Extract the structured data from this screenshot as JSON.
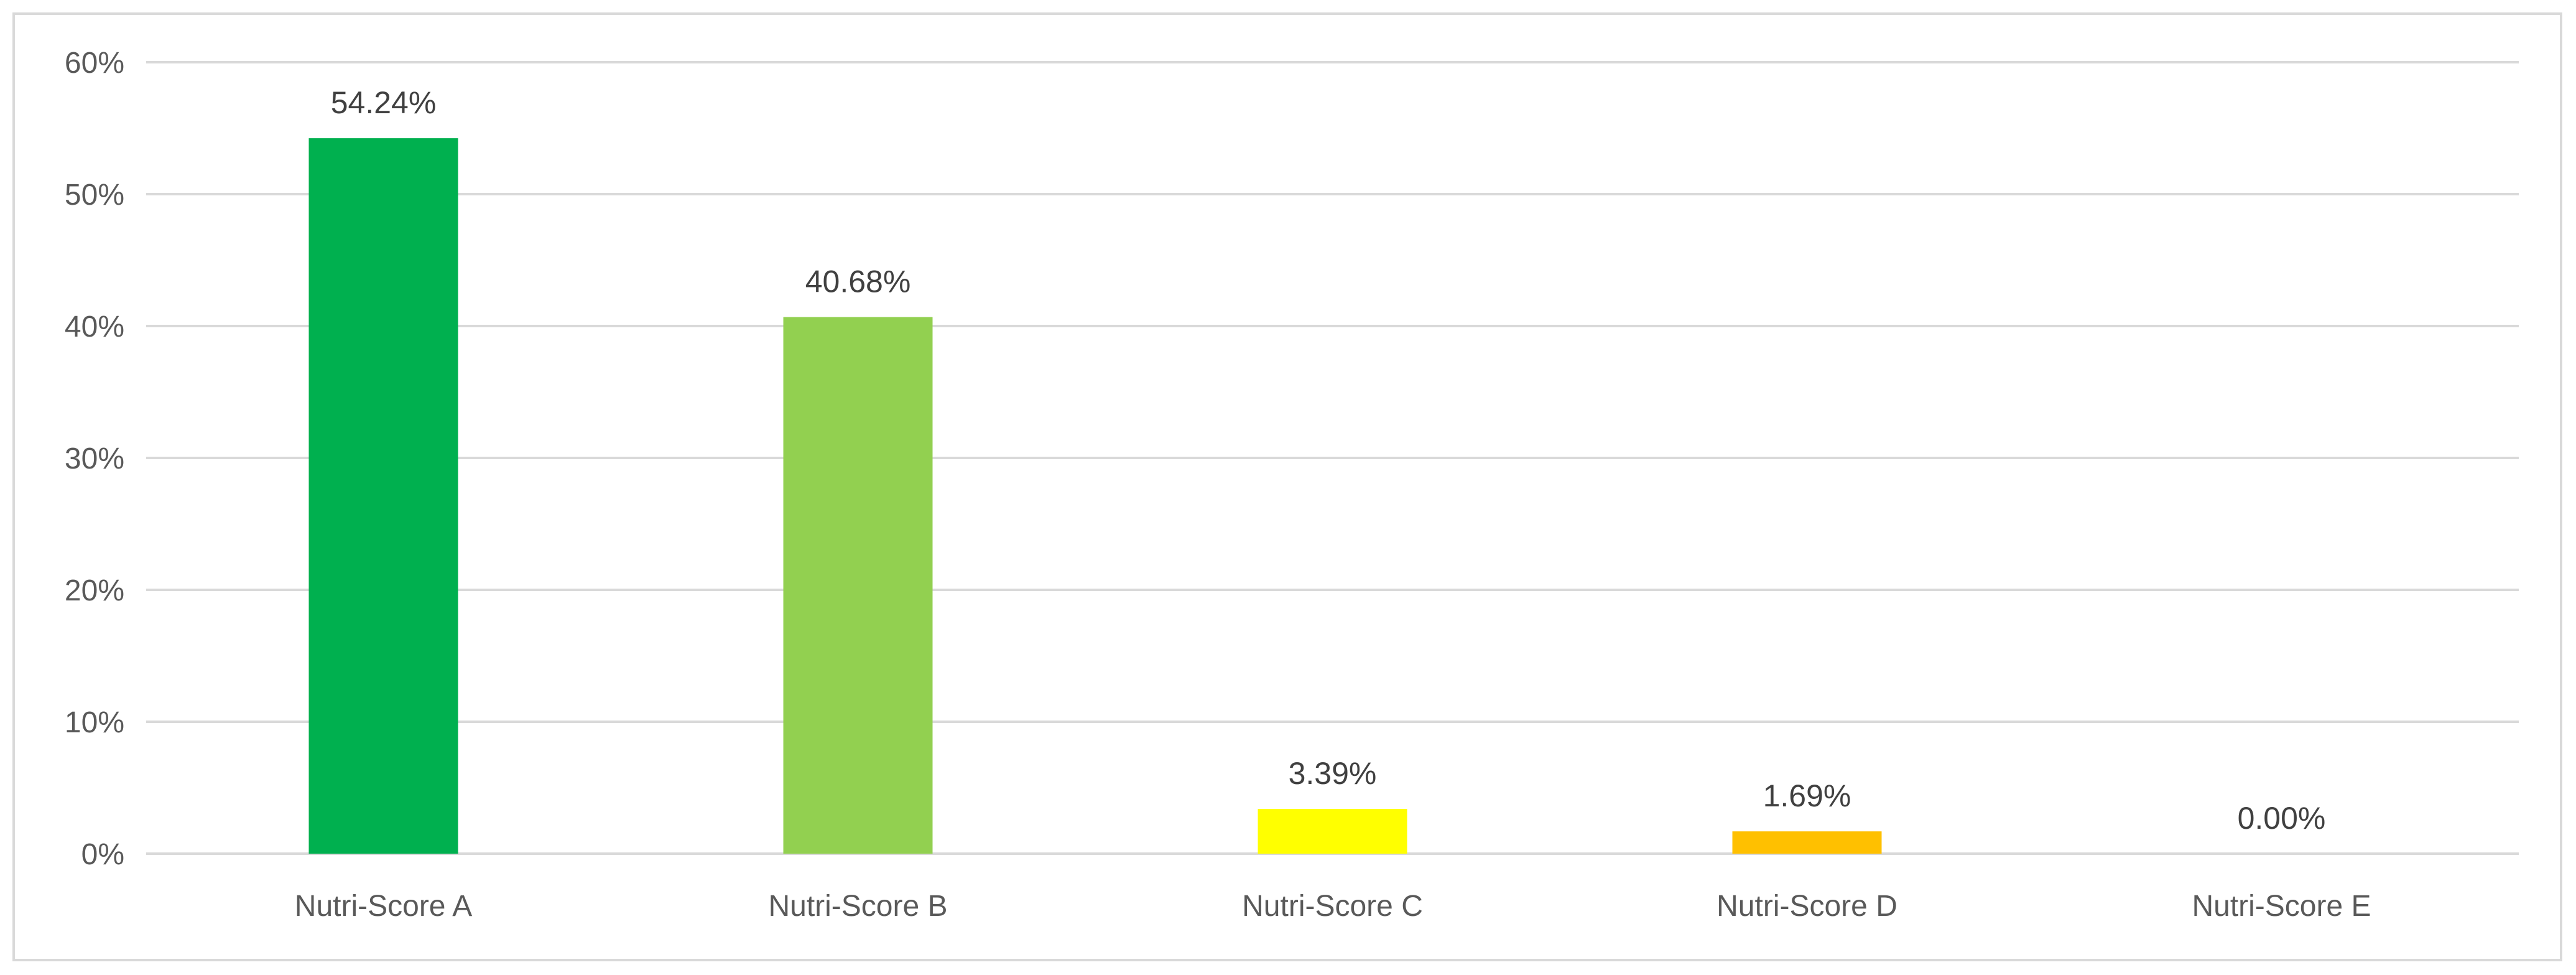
{
  "chart_data": {
    "type": "bar",
    "title": "",
    "xlabel": "",
    "ylabel": "",
    "categories": [
      "Nutri-Score A",
      "Nutri-Score B",
      "Nutri-Score C",
      "Nutri-Score D",
      "Nutri-Score E"
    ],
    "values": [
      54.24,
      40.68,
      3.39,
      1.69,
      0.0
    ],
    "data_labels": [
      "54.24%",
      "40.68%",
      "3.39%",
      "1.69%",
      "0.00%"
    ],
    "bar_colors": [
      "#00b04f",
      "#92d050",
      "#ffff00",
      "#ffc000",
      "#ff0000"
    ],
    "ylim": [
      0,
      60
    ],
    "yticks": [
      0,
      10,
      20,
      30,
      40,
      50,
      60
    ],
    "ytick_labels": [
      "0%",
      "10%",
      "20%",
      "30%",
      "40%",
      "50%",
      "60%"
    ],
    "grid": true,
    "gridline_color": "#d9d9d9",
    "legend": "none"
  }
}
